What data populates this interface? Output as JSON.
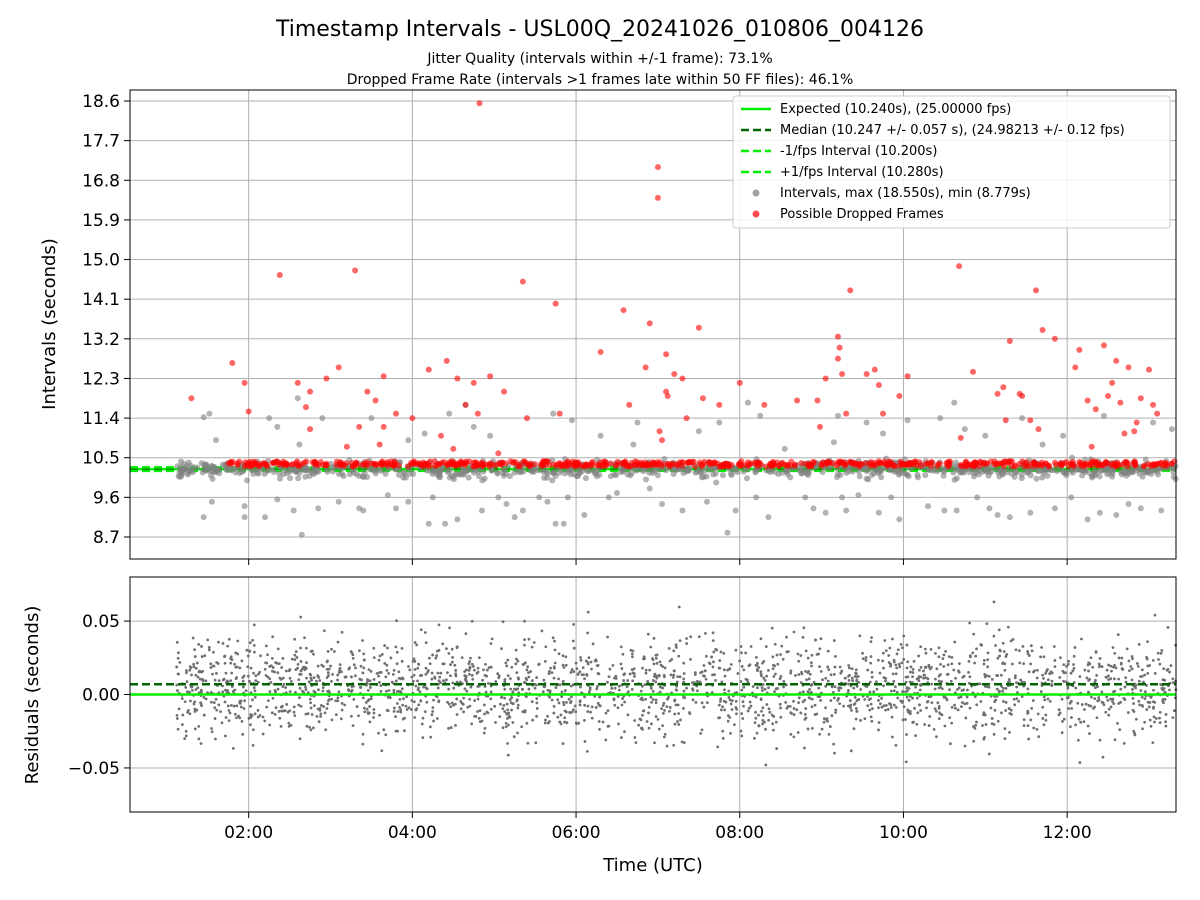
{
  "figure": {
    "title": "Timestamp Intervals - USL00Q_20241026_010806_004126",
    "subtitle_1": "Jitter Quality (intervals within +/-1 frame): 73.1%",
    "subtitle_2": "Dropped Frame Rate (intervals >1 frames late within 50 FF files): 46.1%"
  },
  "colors": {
    "expected": "#00ee00",
    "median": "#006400",
    "interval_limits": "#00ee00",
    "intervals": "#808080",
    "dropped": "#ff0000",
    "residuals": "#707070",
    "grid": "#b0b0b0"
  },
  "chart_data": [
    {
      "type": "scatter",
      "name": "intervals-panel",
      "xlabel": "",
      "ylabel": "Intervals (seconds)",
      "xlim": [
        0.55,
        13.33
      ],
      "ylim": [
        8.2,
        18.85
      ],
      "grid": true,
      "y_ticks": [
        8.7,
        9.6,
        10.5,
        11.4,
        12.3,
        13.2,
        14.1,
        15.0,
        15.9,
        16.8,
        17.7,
        18.6
      ],
      "y_tick_labels": [
        "8.7",
        "9.6",
        "10.5",
        "11.4",
        "12.3",
        "13.2",
        "14.1",
        "15.0",
        "15.9",
        "16.8",
        "17.7",
        "18.6"
      ],
      "x_ticks": [
        2,
        4,
        6,
        8,
        10,
        12
      ],
      "legend_placement": "upper right",
      "series": [
        {
          "name": "Expected (10.240s), (25.00000 fps)",
          "kind": "hline",
          "y": 10.24,
          "style": "solid"
        },
        {
          "name": "Median (10.247 +/- 0.057 s), (24.98213 +/- 0.12 fps)",
          "kind": "hline",
          "y": 10.247,
          "style": "dashed"
        },
        {
          "name": "-1/fps Interval (10.200s)",
          "kind": "hline",
          "y": 10.2,
          "style": "dashed"
        },
        {
          "name": "+1/fps Interval (10.280s)",
          "kind": "hline",
          "y": 10.28,
          "style": "dashed"
        },
        {
          "name": "Intervals, max (18.550s), min (8.779s)",
          "kind": "scatter",
          "note": "approx. 2400 points from 01:08 to 13:20 UTC clustered at 10.24 s; outliers listed",
          "points": [
            [
              1.45,
              11.42
            ],
            [
              1.52,
              11.5
            ],
            [
              1.45,
              9.15
            ],
            [
              1.55,
              9.5
            ],
            [
              1.6,
              10.9
            ],
            [
              1.95,
              9.4
            ],
            [
              1.95,
              9.15
            ],
            [
              2.2,
              9.15
            ],
            [
              2.25,
              11.4
            ],
            [
              2.35,
              9.55
            ],
            [
              2.35,
              11.2
            ],
            [
              2.55,
              9.3
            ],
            [
              2.6,
              11.85
            ],
            [
              2.62,
              10.8
            ],
            [
              2.65,
              8.75
            ],
            [
              2.9,
              11.4
            ],
            [
              2.85,
              9.35
            ],
            [
              3.1,
              9.5
            ],
            [
              3.35,
              9.35
            ],
            [
              3.4,
              9.3
            ],
            [
              3.5,
              11.4
            ],
            [
              3.7,
              9.65
            ],
            [
              3.8,
              9.35
            ],
            [
              3.95,
              9.5
            ],
            [
              3.95,
              10.9
            ],
            [
              4.15,
              11.05
            ],
            [
              4.2,
              9.0
            ],
            [
              4.25,
              9.6
            ],
            [
              4.4,
              9.0
            ],
            [
              4.45,
              11.5
            ],
            [
              4.55,
              9.1
            ],
            [
              4.65,
              11.7
            ],
            [
              4.75,
              11.2
            ],
            [
              4.85,
              9.3
            ],
            [
              4.95,
              11.0
            ],
            [
              5.05,
              9.6
            ],
            [
              5.15,
              9.45
            ],
            [
              5.25,
              9.15
            ],
            [
              5.35,
              9.3
            ],
            [
              5.55,
              9.6
            ],
            [
              5.65,
              9.5
            ],
            [
              5.72,
              11.5
            ],
            [
              5.75,
              9.0
            ],
            [
              5.85,
              9.0
            ],
            [
              5.9,
              9.6
            ],
            [
              5.95,
              11.35
            ],
            [
              6.1,
              9.2
            ],
            [
              6.3,
              11.0
            ],
            [
              6.4,
              9.6
            ],
            [
              6.5,
              9.7
            ],
            [
              6.7,
              10.8
            ],
            [
              6.75,
              11.3
            ],
            [
              6.9,
              9.8
            ],
            [
              7.05,
              9.45
            ],
            [
              7.3,
              9.3
            ],
            [
              7.5,
              11.1
            ],
            [
              7.6,
              9.5
            ],
            [
              7.75,
              11.3
            ],
            [
              7.85,
              8.8
            ],
            [
              7.95,
              9.3
            ],
            [
              8.1,
              11.75
            ],
            [
              8.2,
              9.6
            ],
            [
              8.25,
              11.45
            ],
            [
              8.35,
              9.15
            ],
            [
              8.55,
              10.7
            ],
            [
              8.8,
              9.6
            ],
            [
              8.9,
              9.35
            ],
            [
              9.05,
              9.25
            ],
            [
              9.15,
              10.85
            ],
            [
              9.2,
              11.45
            ],
            [
              9.25,
              9.6
            ],
            [
              9.3,
              9.3
            ],
            [
              9.45,
              9.65
            ],
            [
              9.55,
              11.3
            ],
            [
              9.7,
              9.25
            ],
            [
              9.75,
              11.05
            ],
            [
              9.85,
              9.6
            ],
            [
              9.95,
              9.1
            ],
            [
              10.05,
              11.35
            ],
            [
              10.3,
              9.4
            ],
            [
              10.45,
              11.4
            ],
            [
              10.5,
              9.3
            ],
            [
              10.62,
              11.75
            ],
            [
              10.65,
              9.3
            ],
            [
              10.75,
              11.15
            ],
            [
              10.9,
              9.6
            ],
            [
              11.0,
              11.0
            ],
            [
              11.05,
              9.35
            ],
            [
              11.15,
              9.2
            ],
            [
              11.3,
              9.15
            ],
            [
              11.45,
              11.4
            ],
            [
              11.55,
              9.25
            ],
            [
              11.7,
              10.8
            ],
            [
              11.85,
              9.35
            ],
            [
              11.95,
              11.0
            ],
            [
              12.05,
              9.6
            ],
            [
              12.25,
              9.1
            ],
            [
              12.4,
              9.25
            ],
            [
              12.45,
              11.45
            ],
            [
              12.6,
              9.2
            ],
            [
              12.75,
              9.45
            ],
            [
              12.9,
              9.35
            ],
            [
              13.05,
              11.3
            ],
            [
              13.15,
              9.3
            ],
            [
              13.28,
              11.15
            ]
          ]
        },
        {
          "name": "Possible Dropped Frames",
          "kind": "scatter",
          "note": "dense band of dropped-frame markers near 10.28-10.40 s from 01:45 to 13:20 UTC; outliers listed",
          "points": [
            [
              1.3,
              11.85
            ],
            [
              1.8,
              12.65
            ],
            [
              1.95,
              12.2
            ],
            [
              2.0,
              11.55
            ],
            [
              2.38,
              14.65
            ],
            [
              2.6,
              12.2
            ],
            [
              2.7,
              11.65
            ],
            [
              2.75,
              12.0
            ],
            [
              2.75,
              11.15
            ],
            [
              2.95,
              12.3
            ],
            [
              3.1,
              12.55
            ],
            [
              3.2,
              10.75
            ],
            [
              3.3,
              14.75
            ],
            [
              3.35,
              11.2
            ],
            [
              3.45,
              12.0
            ],
            [
              3.55,
              11.8
            ],
            [
              3.6,
              10.8
            ],
            [
              3.65,
              12.35
            ],
            [
              3.65,
              11.2
            ],
            [
              3.8,
              11.5
            ],
            [
              4.0,
              11.4
            ],
            [
              4.2,
              12.5
            ],
            [
              4.35,
              11.0
            ],
            [
              4.42,
              12.7
            ],
            [
              4.5,
              10.7
            ],
            [
              4.55,
              12.3
            ],
            [
              4.65,
              11.7
            ],
            [
              4.75,
              12.2
            ],
            [
              4.82,
              18.55
            ],
            [
              4.8,
              11.5
            ],
            [
              4.95,
              12.35
            ],
            [
              5.05,
              10.6
            ],
            [
              5.12,
              12.0
            ],
            [
              5.35,
              14.5
            ],
            [
              5.4,
              11.4
            ],
            [
              5.75,
              14.0
            ],
            [
              5.8,
              11.5
            ],
            [
              6.3,
              12.9
            ],
            [
              6.58,
              13.85
            ],
            [
              6.65,
              11.7
            ],
            [
              6.85,
              12.55
            ],
            [
              6.9,
              13.55
            ],
            [
              7.0,
              17.1
            ],
            [
              7.0,
              16.4
            ],
            [
              7.02,
              11.1
            ],
            [
              7.05,
              10.9
            ],
            [
              7.1,
              12.85
            ],
            [
              7.1,
              12.0
            ],
            [
              7.12,
              11.9
            ],
            [
              7.2,
              12.4
            ],
            [
              7.3,
              12.3
            ],
            [
              7.35,
              11.4
            ],
            [
              7.5,
              13.45
            ],
            [
              7.55,
              11.85
            ],
            [
              7.75,
              11.7
            ],
            [
              8.0,
              12.2
            ],
            [
              8.3,
              11.7
            ],
            [
              8.7,
              11.8
            ],
            [
              8.95,
              11.8
            ],
            [
              8.98,
              11.2
            ],
            [
              9.05,
              12.3
            ],
            [
              9.2,
              13.25
            ],
            [
              9.22,
              13.0
            ],
            [
              9.2,
              12.75
            ],
            [
              9.25,
              12.4
            ],
            [
              9.3,
              11.5
            ],
            [
              9.35,
              14.3
            ],
            [
              9.55,
              12.4
            ],
            [
              9.65,
              12.5
            ],
            [
              9.7,
              12.15
            ],
            [
              9.75,
              11.5
            ],
            [
              9.95,
              11.9
            ],
            [
              10.05,
              12.35
            ],
            [
              10.68,
              14.85
            ],
            [
              10.7,
              10.95
            ],
            [
              10.85,
              12.45
            ],
            [
              11.15,
              11.95
            ],
            [
              11.22,
              12.1
            ],
            [
              11.25,
              11.35
            ],
            [
              11.3,
              13.15
            ],
            [
              11.42,
              11.95
            ],
            [
              11.45,
              11.9
            ],
            [
              11.55,
              11.35
            ],
            [
              11.62,
              14.3
            ],
            [
              11.65,
              11.15
            ],
            [
              11.7,
              13.4
            ],
            [
              11.85,
              13.2
            ],
            [
              12.1,
              12.55
            ],
            [
              12.15,
              12.95
            ],
            [
              12.25,
              11.8
            ],
            [
              12.3,
              10.75
            ],
            [
              12.35,
              11.6
            ],
            [
              12.45,
              13.05
            ],
            [
              12.5,
              11.9
            ],
            [
              12.55,
              12.2
            ],
            [
              12.6,
              12.7
            ],
            [
              12.65,
              11.75
            ],
            [
              12.7,
              11.05
            ],
            [
              12.75,
              12.55
            ],
            [
              12.82,
              11.1
            ],
            [
              12.85,
              11.3
            ],
            [
              12.9,
              11.85
            ],
            [
              13.0,
              12.5
            ],
            [
              13.05,
              11.7
            ],
            [
              13.1,
              11.5
            ]
          ]
        }
      ]
    },
    {
      "type": "scatter",
      "name": "residuals-panel",
      "xlabel": "Time (UTC)",
      "ylabel": "Residuals (seconds)",
      "xlim": [
        0.55,
        13.33
      ],
      "ylim": [
        -0.08,
        0.08
      ],
      "grid": true,
      "y_ticks": [
        -0.05,
        0.0,
        0.05
      ],
      "y_tick_labels": [
        "−0.05",
        "0.00",
        "0.05"
      ],
      "x_ticks": [
        2,
        4,
        6,
        8,
        10,
        12
      ],
      "x_tick_labels": [
        "02:00",
        "04:00",
        "06:00",
        "08:00",
        "10:00",
        "12:00"
      ],
      "series": [
        {
          "name": "Expected",
          "kind": "hline",
          "y": 0.0,
          "style": "solid"
        },
        {
          "name": "Median",
          "kind": "hline",
          "y": 0.007,
          "style": "dashed"
        },
        {
          "name": "Residuals",
          "kind": "scatter",
          "note": "approx. 2400 small points from 01:08 to 13:20 UTC with spread of about +/-0.04 s around 0.005 s"
        }
      ]
    }
  ],
  "legend": {
    "items": [
      {
        "label": "Expected (10.240s), (25.00000 fps)",
        "marker": "line-solid",
        "color": "#00ee00"
      },
      {
        "label": "Median (10.247 +/- 0.057 s), (24.98213 +/- 0.12 fps)",
        "marker": "line-dashed",
        "color": "#006400"
      },
      {
        "label": "-1/fps Interval (10.200s)",
        "marker": "line-dashed",
        "color": "#00ee00"
      },
      {
        "label": "+1/fps Interval (10.280s)",
        "marker": "line-dashed",
        "color": "#00ee00"
      },
      {
        "label": "Intervals, max (18.550s), min (8.779s)",
        "marker": "dot",
        "color": "#a0a0a0"
      },
      {
        "label": "Possible Dropped Frames",
        "marker": "dot",
        "color": "#ff4d4d"
      }
    ]
  }
}
